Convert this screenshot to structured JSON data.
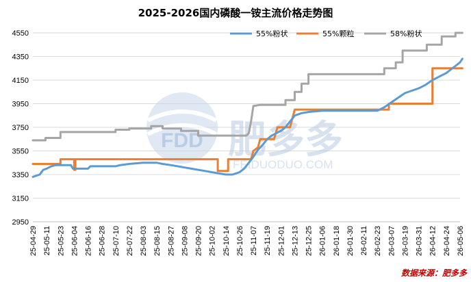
{
  "chart_data": {
    "type": "line",
    "title": "2025-2026国内磷酸一铵主流价格走势图",
    "xlabel": "",
    "ylabel": "",
    "ylim": [
      2950,
      4550
    ],
    "yticks": [
      2950,
      3150,
      3350,
      3550,
      3750,
      3950,
      4150,
      4350,
      4550
    ],
    "grid": "horizontal",
    "legend_position": "top-right",
    "xticks": [
      "25-04-29",
      "25-05-11",
      "25-05-23",
      "25-06-04",
      "25-06-16",
      "25-06-28",
      "25-07-10",
      "25-07-22",
      "25-08-03",
      "25-08-15",
      "25-08-27",
      "25-09-08",
      "25-09-20",
      "25-10-02",
      "25-10-14",
      "25-10-26",
      "25-11-07",
      "25-11-19",
      "25-12-01",
      "25-12-13",
      "25-12-25",
      "26-01-06",
      "26-01-18",
      "26-01-30",
      "26-02-11",
      "26-02-23",
      "26-03-07",
      "26-03-19",
      "26-03-31",
      "26-04-12",
      "26-04-24",
      "26-05-06"
    ],
    "series": [
      {
        "name": "55%粉状",
        "color": "#5b9bd5",
        "points": [
          [
            "25-04-29",
            3330
          ],
          [
            "25-05-05",
            3350
          ],
          [
            "25-05-08",
            3390
          ],
          [
            "25-05-11",
            3400
          ],
          [
            "25-05-15",
            3420
          ],
          [
            "25-05-19",
            3430
          ],
          [
            "25-06-01",
            3430
          ],
          [
            "25-06-03",
            3400
          ],
          [
            "25-06-16",
            3400
          ],
          [
            "25-06-18",
            3420
          ],
          [
            "25-07-10",
            3420
          ],
          [
            "25-07-14",
            3430
          ],
          [
            "25-07-22",
            3440
          ],
          [
            "25-08-03",
            3450
          ],
          [
            "25-08-15",
            3450
          ],
          [
            "25-08-20",
            3440
          ],
          [
            "25-08-27",
            3430
          ],
          [
            "25-09-02",
            3420
          ],
          [
            "25-09-08",
            3410
          ],
          [
            "25-09-14",
            3400
          ],
          [
            "25-09-20",
            3390
          ],
          [
            "25-09-26",
            3380
          ],
          [
            "25-10-02",
            3370
          ],
          [
            "25-10-08",
            3360
          ],
          [
            "25-10-14",
            3350
          ],
          [
            "25-10-20",
            3350
          ],
          [
            "25-10-26",
            3370
          ],
          [
            "25-10-30",
            3400
          ],
          [
            "25-11-03",
            3450
          ],
          [
            "25-11-07",
            3500
          ],
          [
            "25-11-11",
            3560
          ],
          [
            "25-11-15",
            3600
          ],
          [
            "25-11-19",
            3650
          ],
          [
            "25-11-23",
            3680
          ],
          [
            "25-11-27",
            3700
          ],
          [
            "25-12-01",
            3720
          ],
          [
            "25-12-05",
            3750
          ],
          [
            "25-12-09",
            3800
          ],
          [
            "25-12-13",
            3850
          ],
          [
            "25-12-19",
            3870
          ],
          [
            "25-12-25",
            3880
          ],
          [
            "26-01-06",
            3890
          ],
          [
            "26-02-23",
            3890
          ],
          [
            "26-03-01",
            3920
          ],
          [
            "26-03-07",
            3960
          ],
          [
            "26-03-13",
            4000
          ],
          [
            "26-03-19",
            4040
          ],
          [
            "26-03-25",
            4060
          ],
          [
            "26-03-31",
            4080
          ],
          [
            "26-04-06",
            4110
          ],
          [
            "26-04-12",
            4150
          ],
          [
            "26-04-18",
            4180
          ],
          [
            "26-04-24",
            4210
          ],
          [
            "26-04-28",
            4240
          ],
          [
            "26-05-02",
            4270
          ],
          [
            "26-05-06",
            4300
          ],
          [
            "26-05-08",
            4330
          ]
        ]
      },
      {
        "name": "55%颗粒",
        "color": "#ed7d31",
        "points": [
          [
            "25-04-29",
            3440
          ],
          [
            "25-05-23",
            3440
          ],
          [
            "25-05-23",
            3480
          ],
          [
            "25-06-04",
            3480
          ],
          [
            "25-06-04",
            3390
          ],
          [
            "25-06-05",
            3390
          ],
          [
            "25-06-05",
            3480
          ],
          [
            "25-10-07",
            3480
          ],
          [
            "25-10-07",
            3380
          ],
          [
            "25-10-16",
            3380
          ],
          [
            "25-10-16",
            3480
          ],
          [
            "25-11-05",
            3480
          ],
          [
            "25-11-07",
            3550
          ],
          [
            "25-11-11",
            3580
          ],
          [
            "25-11-13",
            3650
          ],
          [
            "25-11-25",
            3650
          ],
          [
            "25-11-28",
            3750
          ],
          [
            "25-12-09",
            3750
          ],
          [
            "25-12-13",
            3900
          ],
          [
            "26-03-05",
            3900
          ],
          [
            "26-03-05",
            3950
          ],
          [
            "26-04-12",
            3950
          ],
          [
            "26-04-12",
            4250
          ],
          [
            "26-05-08",
            4250
          ]
        ]
      },
      {
        "name": "58%粉状",
        "color": "#a5a5a5",
        "points": [
          [
            "25-04-29",
            3640
          ],
          [
            "25-05-10",
            3640
          ],
          [
            "25-05-10",
            3660
          ],
          [
            "25-05-23",
            3660
          ],
          [
            "25-05-23",
            3710
          ],
          [
            "25-07-10",
            3710
          ],
          [
            "25-07-10",
            3730
          ],
          [
            "25-07-22",
            3730
          ],
          [
            "25-07-22",
            3740
          ],
          [
            "25-08-10",
            3740
          ],
          [
            "25-08-10",
            3760
          ],
          [
            "25-08-20",
            3760
          ],
          [
            "25-08-20",
            3740
          ],
          [
            "25-09-05",
            3740
          ],
          [
            "25-09-05",
            3720
          ],
          [
            "25-09-20",
            3720
          ],
          [
            "25-09-20",
            3680
          ],
          [
            "25-11-01",
            3680
          ],
          [
            "25-11-03",
            3700
          ],
          [
            "25-11-05",
            3800
          ],
          [
            "25-11-07",
            3930
          ],
          [
            "25-11-13",
            3940
          ],
          [
            "25-12-05",
            3940
          ],
          [
            "25-12-05",
            3980
          ],
          [
            "25-12-13",
            3980
          ],
          [
            "25-12-13",
            4050
          ],
          [
            "25-12-19",
            4050
          ],
          [
            "25-12-19",
            4120
          ],
          [
            "25-12-25",
            4120
          ],
          [
            "25-12-25",
            4200
          ],
          [
            "26-03-01",
            4200
          ],
          [
            "26-03-01",
            4250
          ],
          [
            "26-03-11",
            4250
          ],
          [
            "26-03-11",
            4300
          ],
          [
            "26-03-17",
            4300
          ],
          [
            "26-03-17",
            4400
          ],
          [
            "26-04-07",
            4400
          ],
          [
            "26-04-07",
            4450
          ],
          [
            "26-04-20",
            4450
          ],
          [
            "26-04-20",
            4520
          ],
          [
            "26-05-02",
            4520
          ],
          [
            "26-05-02",
            4550
          ],
          [
            "26-05-08",
            4550
          ]
        ]
      }
    ],
    "watermark": {
      "brand_cn": "肥多多",
      "brand_latin": "FDD",
      "site": "FEIDUODUO.COM"
    },
    "source": "数据来源：肥多多"
  }
}
